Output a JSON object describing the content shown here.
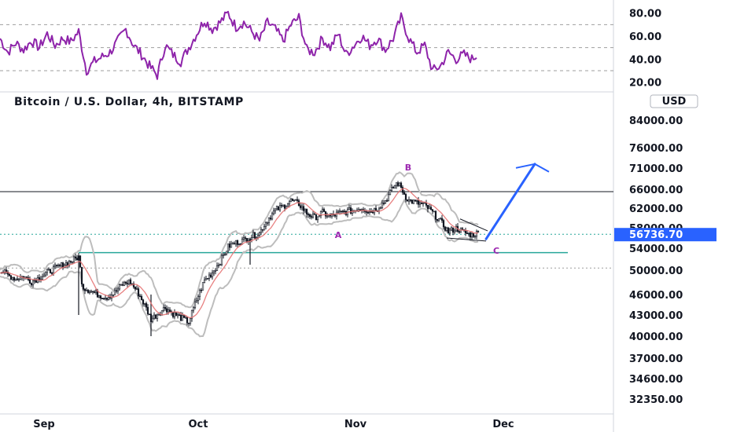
{
  "header": {
    "title": "Bitcoin / U.S. Dollar, 4h, BITSTAMP",
    "currency": "USD"
  },
  "colors": {
    "rsi_line": "#8e24aa",
    "price_candle": "#131722",
    "bollinger": "#bdbdbd",
    "ma_line": "#e57373",
    "support": "#26a69a",
    "projection": "#2962ff",
    "wave_labels": "#9c27b0",
    "price_tag_bg": "#2962ff"
  },
  "chart_data": [
    {
      "type": "line",
      "panel": "rsi",
      "yticks": [
        "80.00",
        "60.00",
        "40.00",
        "20.00"
      ],
      "ylim": [
        15,
        90
      ],
      "levels": [
        70,
        50,
        30
      ],
      "x": [
        0,
        10,
        20,
        30,
        40,
        50,
        60,
        70,
        80,
        90,
        100,
        110,
        120,
        130,
        140,
        150,
        160,
        170,
        180,
        190,
        200,
        210,
        220,
        230,
        240,
        250,
        260,
        270,
        280,
        290,
        300,
        310,
        320,
        330,
        340,
        350,
        360,
        370,
        380,
        390,
        400,
        410,
        420,
        430,
        440,
        450,
        460,
        470,
        480,
        490,
        500,
        510,
        520,
        530,
        540,
        550,
        560,
        570,
        580,
        590,
        600,
        607
      ],
      "values": [
        58,
        46,
        54,
        48,
        56,
        50,
        62,
        52,
        58,
        55,
        64,
        30,
        38,
        42,
        46,
        56,
        66,
        52,
        44,
        34,
        26,
        52,
        44,
        38,
        50,
        62,
        74,
        66,
        72,
        80,
        68,
        72,
        64,
        56,
        72,
        66,
        56,
        70,
        76,
        48,
        46,
        58,
        50,
        62,
        44,
        52,
        60,
        52,
        58,
        48,
        58,
        76,
        58,
        46,
        52,
        30,
        34,
        46,
        40,
        44,
        40,
        44
      ]
    },
    {
      "type": "candlestick",
      "panel": "price",
      "yticks": [
        "84000.00",
        "76000.00",
        "71000.00",
        "66000.00",
        "62000.00",
        "58000.00",
        "54000.00",
        "50000.00",
        "46000.00",
        "43000.00",
        "40000.00",
        "37000.00",
        "34600.00",
        "32350.00"
      ],
      "xticks": [
        "Sep",
        "Oct",
        "Nov",
        "Dec"
      ],
      "current_price": "56736.70",
      "resistance": 65500,
      "support": 53200,
      "dotted_levels": [
        56736.7,
        50400
      ],
      "wave_labels": [
        "A",
        "B",
        "C"
      ],
      "close_path": {
        "x": [
          0,
          10,
          20,
          30,
          40,
          50,
          60,
          70,
          80,
          90,
          100,
          105,
          115,
          125,
          135,
          145,
          155,
          165,
          175,
          185,
          192,
          200,
          210,
          220,
          230,
          240,
          250,
          260,
          270,
          280,
          290,
          300,
          310,
          320,
          330,
          340,
          350,
          360,
          370,
          380,
          390,
          400,
          410,
          420,
          430,
          440,
          450,
          460,
          470,
          480,
          490,
          500,
          505,
          510,
          515,
          520,
          530,
          540,
          550,
          560,
          570,
          580,
          590,
          600,
          610
        ],
        "y": [
          50000,
          49200,
          48600,
          49000,
          48100,
          48800,
          49600,
          50400,
          51000,
          51600,
          52400,
          47200,
          46600,
          46000,
          45600,
          46200,
          47600,
          48200,
          46400,
          44200,
          42400,
          43100,
          44100,
          43200,
          42600,
          42000,
          45200,
          48300,
          49600,
          51600,
          54300,
          55100,
          55600,
          56300,
          57000,
          59600,
          61600,
          62400,
          63600,
          62900,
          61000,
          60100,
          61100,
          60300,
          60900,
          61300,
          61600,
          62100,
          61300,
          62000,
          63600,
          66400,
          67600,
          66400,
          64600,
          63600,
          63100,
          62600,
          61100,
          59300,
          57200,
          57900,
          57100,
          56600,
          57100
        ]
      },
      "projection": {
        "from": [
          618,
          55800
        ],
        "to": [
          680,
          72000
        ]
      }
    }
  ]
}
